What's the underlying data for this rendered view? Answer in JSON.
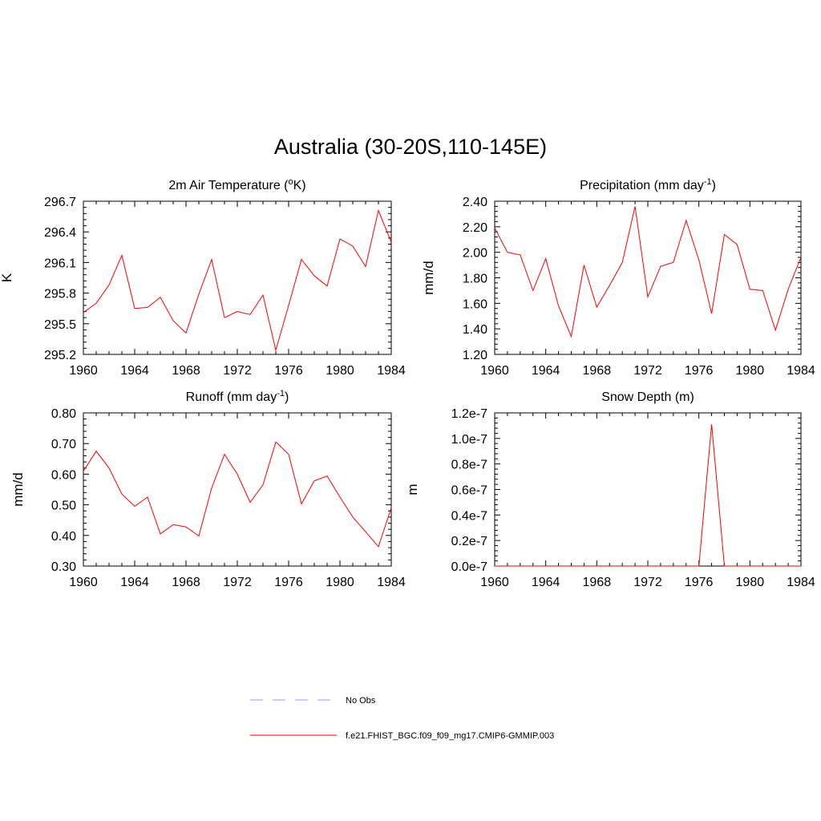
{
  "page": {
    "title": "Australia (30-20S,110-145E)"
  },
  "colors": {
    "model": "#ff0000",
    "obs": "#9999ff",
    "axis": "#000000"
  },
  "legend": {
    "obs_label": "No Obs",
    "model_label": "f.e21.FHIST_BGC.f09_f09_mg17.CMIP6-GMMIP.003"
  },
  "chart_data": [
    {
      "type": "line",
      "title": "2m Air Temperature (",
      "title_sup": "o",
      "title_after": "K)",
      "ylabel": "K",
      "xlim": [
        1960,
        1984
      ],
      "ylim": [
        295.2,
        296.7
      ],
      "xticks": [
        1960,
        1964,
        1968,
        1972,
        1976,
        1980,
        1984
      ],
      "yticks": [
        "295.2",
        "295.5",
        "295.8",
        "296.1",
        "296.4",
        "296.7"
      ],
      "series": [
        {
          "x": [
            1960,
            1961,
            1962,
            1963,
            1964,
            1965,
            1966,
            1967,
            1968,
            1969,
            1970,
            1971,
            1972,
            1973,
            1974,
            1975,
            1976,
            1977,
            1978,
            1979,
            1980,
            1981,
            1982,
            1983,
            1984
          ],
          "y": [
            295.61,
            295.7,
            295.88,
            296.17,
            295.65,
            295.66,
            295.76,
            295.53,
            295.41,
            295.79,
            296.13,
            295.56,
            295.62,
            295.59,
            295.78,
            295.24,
            295.68,
            296.13,
            295.97,
            295.87,
            296.33,
            296.26,
            296.06,
            296.61,
            296.3
          ]
        }
      ]
    },
    {
      "type": "line",
      "title": "Precipitation (mm day",
      "title_sup": "-1",
      "title_after": ")",
      "ylabel": "mm/d",
      "xlim": [
        1960,
        1984
      ],
      "ylim": [
        1.2,
        2.4
      ],
      "xticks": [
        1960,
        1964,
        1968,
        1972,
        1976,
        1980,
        1984
      ],
      "yticks": [
        "1.20",
        "1.40",
        "1.60",
        "1.80",
        "2.00",
        "2.20",
        "2.40"
      ],
      "series": [
        {
          "x": [
            1960,
            1961,
            1962,
            1963,
            1964,
            1965,
            1966,
            1967,
            1968,
            1969,
            1970,
            1971,
            1972,
            1973,
            1974,
            1975,
            1976,
            1977,
            1978,
            1979,
            1980,
            1981,
            1982,
            1983,
            1984
          ],
          "y": [
            2.19,
            2.0,
            1.98,
            1.7,
            1.95,
            1.58,
            1.34,
            1.9,
            1.57,
            1.74,
            1.92,
            2.36,
            1.65,
            1.89,
            1.92,
            2.25,
            1.94,
            1.52,
            2.14,
            2.06,
            1.71,
            1.7,
            1.39,
            1.71,
            1.96
          ]
        }
      ]
    },
    {
      "type": "line",
      "title": "Runoff (mm day",
      "title_sup": "-1",
      "title_after": ")",
      "ylabel": "mm/d",
      "xlim": [
        1960,
        1984
      ],
      "ylim": [
        0.3,
        0.8
      ],
      "xticks": [
        1960,
        1964,
        1968,
        1972,
        1976,
        1980,
        1984
      ],
      "yticks": [
        "0.30",
        "0.40",
        "0.50",
        "0.60",
        "0.70",
        "0.80"
      ],
      "series": [
        {
          "x": [
            1960,
            1961,
            1962,
            1963,
            1964,
            1965,
            1966,
            1967,
            1968,
            1969,
            1970,
            1971,
            1972,
            1973,
            1974,
            1975,
            1976,
            1977,
            1978,
            1979,
            1980,
            1981,
            1982,
            1983,
            1984
          ],
          "y": [
            0.61,
            0.675,
            0.62,
            0.535,
            0.495,
            0.525,
            0.405,
            0.435,
            0.428,
            0.398,
            0.555,
            0.665,
            0.6,
            0.508,
            0.565,
            0.705,
            0.665,
            0.503,
            0.578,
            0.594,
            0.525,
            0.46,
            0.412,
            0.363,
            0.49
          ]
        }
      ]
    },
    {
      "type": "line",
      "title": "Snow Depth (m)",
      "title_sup": "",
      "title_after": "",
      "ylabel": "m",
      "xlim": [
        1960,
        1984
      ],
      "ylim": [
        0,
        1.2e-07
      ],
      "xticks": [
        1960,
        1964,
        1968,
        1972,
        1976,
        1980,
        1984
      ],
      "yticks": [
        "0.0e-7",
        "0.2e-7",
        "0.4e-7",
        "0.6e-7",
        "0.8e-7",
        "1.0e-7",
        "1.2e-7"
      ],
      "series": [
        {
          "x": [
            1960,
            1961,
            1962,
            1963,
            1964,
            1965,
            1966,
            1967,
            1968,
            1969,
            1970,
            1971,
            1972,
            1973,
            1974,
            1975,
            1976,
            1977,
            1978,
            1979,
            1980,
            1981,
            1982,
            1983,
            1984
          ],
          "y": [
            0,
            0,
            0,
            0,
            0,
            0,
            0,
            0,
            0,
            0,
            0,
            0,
            0,
            0,
            0,
            0,
            0,
            1.11e-07,
            0,
            0,
            0,
            0,
            0,
            0,
            0
          ]
        }
      ]
    }
  ]
}
